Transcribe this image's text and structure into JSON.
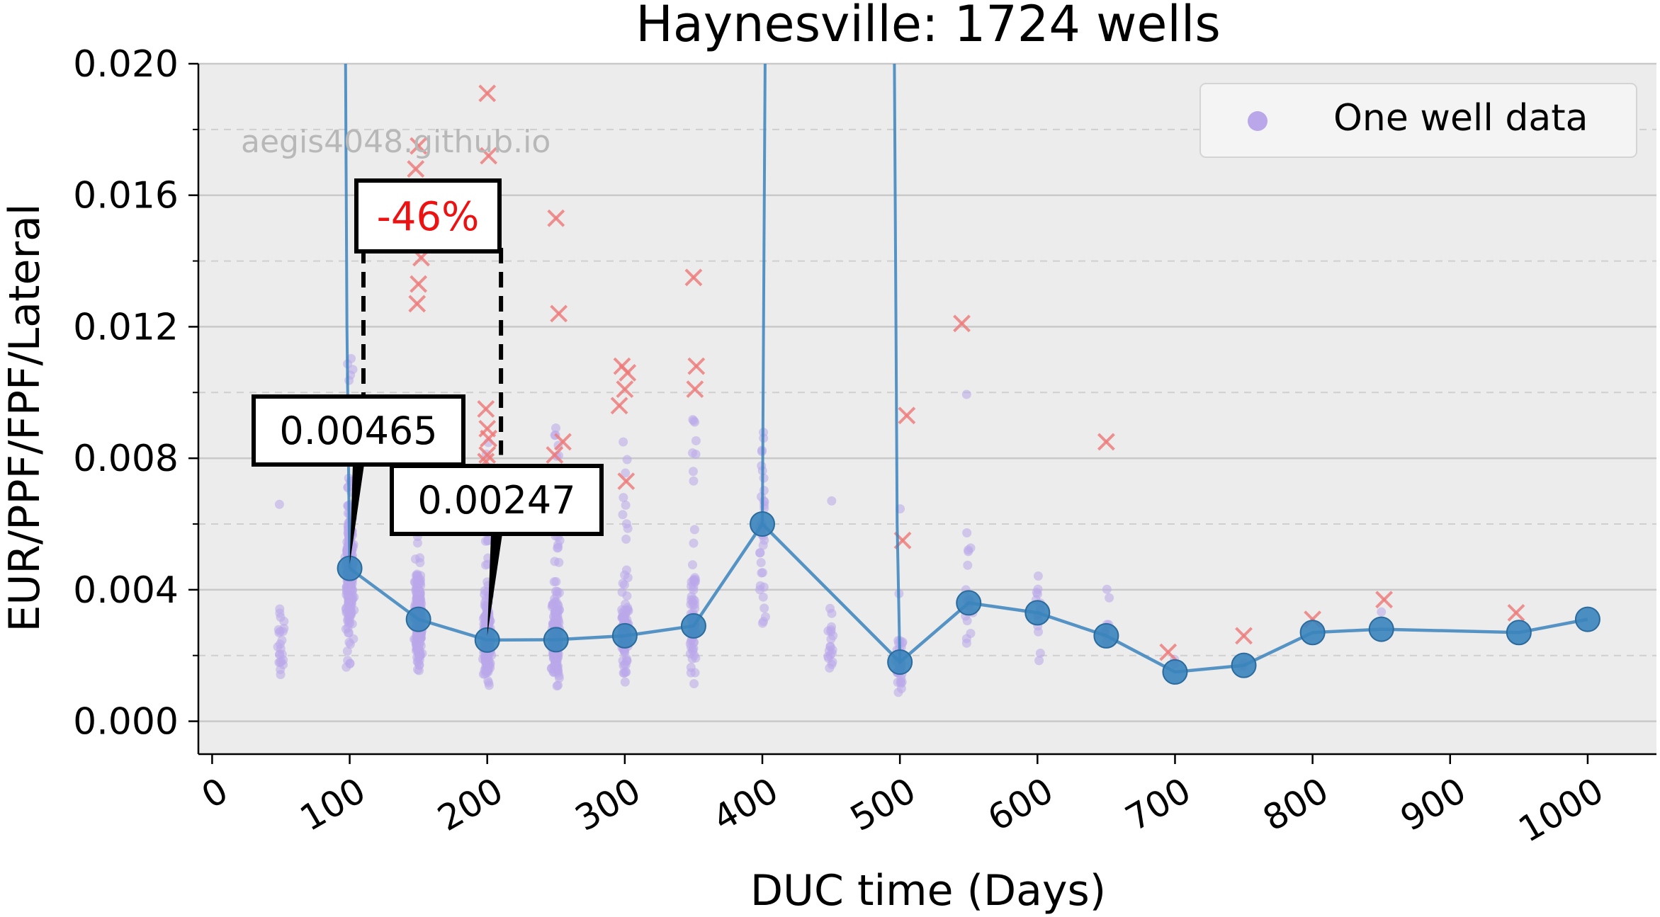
{
  "chart_data": {
    "type": "scatter",
    "title": "Haynesville: 1724 wells",
    "xlabel": "DUC time (Days)",
    "ylabel": "EUR/PPF/FPF/Lateral",
    "xlim": [
      -10,
      1050
    ],
    "ylim": [
      -0.001,
      0.02
    ],
    "xticks": [
      0,
      100,
      200,
      300,
      400,
      500,
      600,
      700,
      800,
      900,
      1000
    ],
    "yticks": [
      0.0,
      0.004,
      0.008,
      0.012,
      0.016,
      0.02
    ],
    "ytick_labels": [
      "0.000",
      "0.004",
      "0.008",
      "0.012",
      "0.016",
      "0.020"
    ],
    "grid": "horizontal",
    "legend": {
      "placement": "top-right",
      "entries": [
        "One well data"
      ]
    },
    "watermark": "aegis4048.github.io",
    "colors": {
      "scatter": "#b9a7ea",
      "median": "#3a84bd",
      "outlier": "#ef7878",
      "annotation_red": "#ee1111",
      "background": "#ececec"
    },
    "median_series": {
      "x": [
        100,
        150,
        200,
        250,
        300,
        350,
        400,
        500,
        550,
        600,
        650,
        700,
        750,
        800,
        850,
        950,
        1000
      ],
      "y": [
        0.00465,
        0.0031,
        0.00247,
        0.00248,
        0.0026,
        0.0029,
        0.006,
        0.0018,
        0.0036,
        0.0033,
        0.0026,
        0.0015,
        0.0017,
        0.0027,
        0.0028,
        0.0027,
        0.0031
      ]
    },
    "spikes": [
      {
        "x": [
          97,
          98,
          100
        ],
        "y": [
          0.025,
          0.012,
          0.00465
        ]
      },
      {
        "x": [
          400,
          402
        ],
        "y": [
          0.006,
          0.025
        ]
      },
      {
        "x": [
          496,
          498,
          500
        ],
        "y": [
          0.025,
          0.006,
          0.0018
        ]
      }
    ],
    "outliers": {
      "x": [
        150,
        148,
        152,
        150,
        149,
        151,
        150,
        153,
        200,
        201,
        199,
        200,
        201,
        200,
        199,
        250,
        252,
        255,
        249,
        298,
        302,
        300,
        296,
        301,
        350,
        352,
        351,
        505,
        502,
        545,
        650,
        695,
        750,
        800,
        852,
        948
      ],
      "y": [
        0.0175,
        0.0168,
        0.0141,
        0.0133,
        0.0127,
        0.0154,
        0.0161,
        0.0145,
        0.0191,
        0.0172,
        0.0095,
        0.0089,
        0.0086,
        0.0081,
        0.0079,
        0.0153,
        0.0124,
        0.0085,
        0.0081,
        0.0108,
        0.0106,
        0.0101,
        0.0096,
        0.0073,
        0.0135,
        0.0108,
        0.0101,
        0.0093,
        0.0055,
        0.0121,
        0.0085,
        0.0021,
        0.0026,
        0.0031,
        0.0037,
        0.0033
      ]
    },
    "annotations": [
      {
        "text": "0.00465",
        "x": 100,
        "y": 0.00465
      },
      {
        "text": "0.00247",
        "x": 200,
        "y": 0.00247
      },
      {
        "text": "-46%",
        "x_left": 110,
        "x_right": 210
      }
    ]
  }
}
